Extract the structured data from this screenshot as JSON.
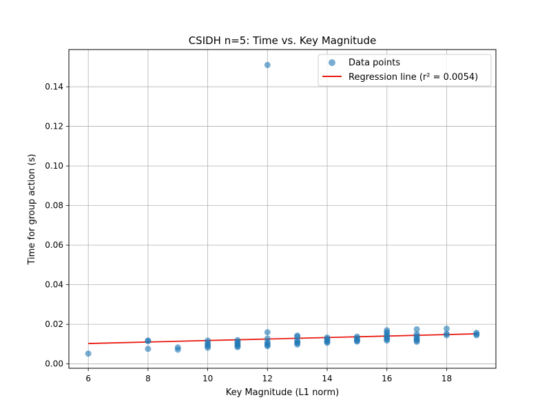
{
  "chart_data": {
    "type": "scatter",
    "title": "CSIDH n=5: Time vs. Key Magnitude",
    "xlabel": "Key Magnitude (L1 norm)",
    "ylabel": "Time for group action (s)",
    "xlim": [
      5.35,
      19.65
    ],
    "ylim": [
      -0.0022,
      0.1588
    ],
    "xticks": [
      6,
      8,
      10,
      12,
      14,
      16,
      18
    ],
    "yticks": [
      0.0,
      0.02,
      0.04,
      0.06,
      0.08,
      0.1,
      0.12,
      0.14
    ],
    "ytick_labels": [
      "0.00",
      "0.02",
      "0.04",
      "0.06",
      "0.08",
      "0.10",
      "0.12",
      "0.14"
    ],
    "grid": true,
    "legend": {
      "placement": "top-right",
      "entries": [
        "Data points",
        "Regression line (r² = 0.0054)"
      ]
    },
    "series": [
      {
        "name": "Data points",
        "kind": "scatter",
        "color": "#1f77b4",
        "points": [
          [
            6,
            0.0052
          ],
          [
            8,
            0.0118
          ],
          [
            8,
            0.0115
          ],
          [
            8,
            0.0076
          ],
          [
            9,
            0.0083
          ],
          [
            9,
            0.0072
          ],
          [
            10,
            0.0118
          ],
          [
            10,
            0.0105
          ],
          [
            10,
            0.0098
          ],
          [
            10,
            0.009
          ],
          [
            10,
            0.0082
          ],
          [
            11,
            0.012
          ],
          [
            11,
            0.0112
          ],
          [
            11,
            0.0105
          ],
          [
            11,
            0.0098
          ],
          [
            11,
            0.009
          ],
          [
            11,
            0.0085
          ],
          [
            12,
            0.151
          ],
          [
            12,
            0.016
          ],
          [
            12,
            0.0128
          ],
          [
            12,
            0.011
          ],
          [
            12,
            0.0102
          ],
          [
            12,
            0.0095
          ],
          [
            12,
            0.009
          ],
          [
            13,
            0.0143
          ],
          [
            13,
            0.0137
          ],
          [
            13,
            0.0117
          ],
          [
            13,
            0.011
          ],
          [
            13,
            0.0105
          ],
          [
            13,
            0.0098
          ],
          [
            14,
            0.0133
          ],
          [
            14,
            0.0126
          ],
          [
            14,
            0.0118
          ],
          [
            14,
            0.0112
          ],
          [
            14,
            0.0107
          ],
          [
            15,
            0.0138
          ],
          [
            15,
            0.013
          ],
          [
            15,
            0.0123
          ],
          [
            15,
            0.0117
          ],
          [
            15,
            0.0113
          ],
          [
            16,
            0.017
          ],
          [
            16,
            0.016
          ],
          [
            16,
            0.015
          ],
          [
            16,
            0.014
          ],
          [
            16,
            0.0132
          ],
          [
            16,
            0.0125
          ],
          [
            16,
            0.0118
          ],
          [
            17,
            0.0175
          ],
          [
            17,
            0.015
          ],
          [
            17,
            0.014
          ],
          [
            17,
            0.0132
          ],
          [
            17,
            0.0125
          ],
          [
            17,
            0.0118
          ],
          [
            17,
            0.0112
          ],
          [
            18,
            0.0178
          ],
          [
            18,
            0.0152
          ],
          [
            18,
            0.0145
          ],
          [
            19,
            0.0157
          ],
          [
            19,
            0.015
          ],
          [
            19,
            0.0145
          ]
        ]
      },
      {
        "name": "Regression line (r² = 0.0054)",
        "kind": "line",
        "color": "#e8180f",
        "points": [
          [
            6,
            0.0103
          ],
          [
            19,
            0.0152
          ]
        ]
      }
    ]
  }
}
